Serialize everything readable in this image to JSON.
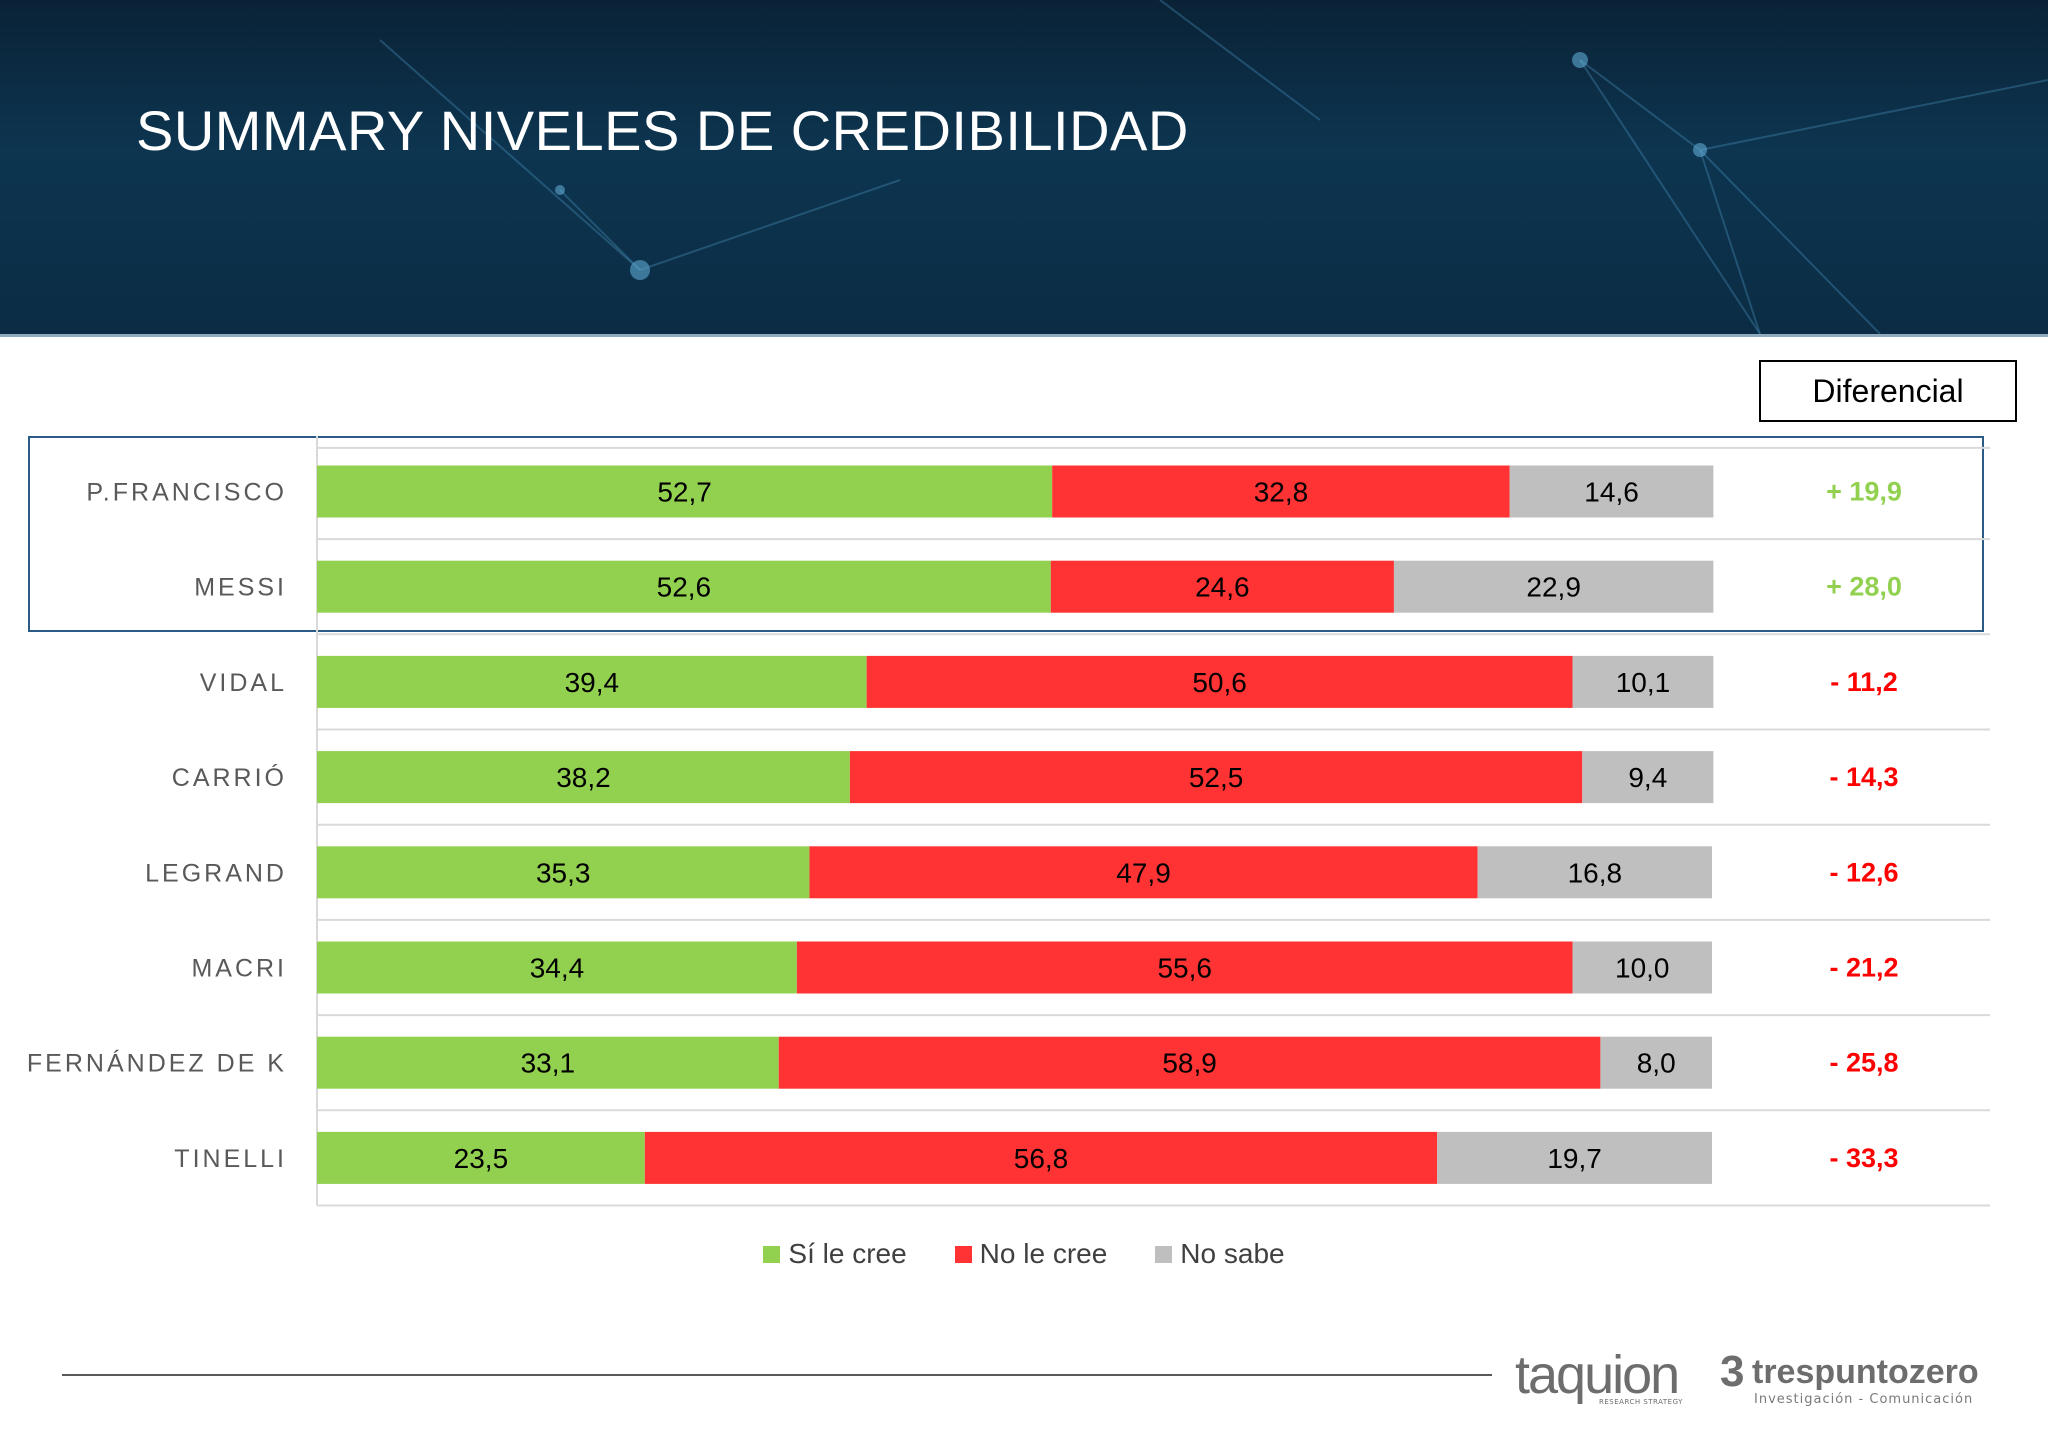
{
  "header": {
    "title": "SUMMARY NIVELES DE CREDIBILIDAD"
  },
  "differential_header": "Diferencial",
  "chart_data": {
    "type": "bar",
    "orientation": "horizontal",
    "stacked": true,
    "categories": [
      "P.FRANCISCO",
      "MESSI",
      "VIDAL",
      "CARRIÓ",
      "LEGRAND",
      "MACRI",
      "FERNÁNDEZ DE K",
      "TINELLI"
    ],
    "series": [
      {
        "name": "Sí le cree",
        "color": "#92d050",
        "values": [
          52.7,
          52.6,
          39.4,
          38.2,
          35.3,
          34.4,
          33.1,
          23.5
        ],
        "labels": [
          "52,7",
          "52,6",
          "39,4",
          "38,2",
          "35,3",
          "34,4",
          "33,1",
          "23,5"
        ]
      },
      {
        "name": "No le cree",
        "color": "#ff3333",
        "values": [
          32.8,
          24.6,
          50.6,
          52.5,
          47.9,
          55.6,
          58.9,
          56.8
        ],
        "labels": [
          "32,8",
          "24,6",
          "50,6",
          "52,5",
          "47,9",
          "55,6",
          "58,9",
          "56,8"
        ]
      },
      {
        "name": "No sabe",
        "color": "#bfbfbf",
        "values": [
          14.6,
          22.9,
          10.1,
          9.4,
          16.8,
          10.0,
          8.0,
          19.7
        ],
        "labels": [
          "14,6",
          "22,9",
          "10,1",
          "9,4",
          "16,8",
          "10,0",
          "8,0",
          "19,7"
        ]
      }
    ],
    "differential": {
      "values": [
        19.9,
        28.0,
        -11.2,
        -14.3,
        -12.6,
        -21.2,
        -25.8,
        -33.3
      ],
      "labels": [
        "+ 19,9",
        "+ 28,0",
        "- 11,2",
        "- 14,3",
        "- 12,6",
        "- 21,2",
        "- 25,8",
        "- 33,3"
      ],
      "positive_color": "#92d050",
      "negative_color": "#ff0000"
    },
    "xlim": [
      0,
      100
    ],
    "legend_position": "bottom",
    "highlighted_categories": [
      "P.FRANCISCO",
      "MESSI"
    ]
  },
  "logos": {
    "taquion": {
      "name": "taquion",
      "tagline": "RESEARCH STRATEGY"
    },
    "trespuntozero": {
      "mark": "3",
      "name": "trespuntozero",
      "tagline": "Investigación - Comunicación"
    }
  }
}
